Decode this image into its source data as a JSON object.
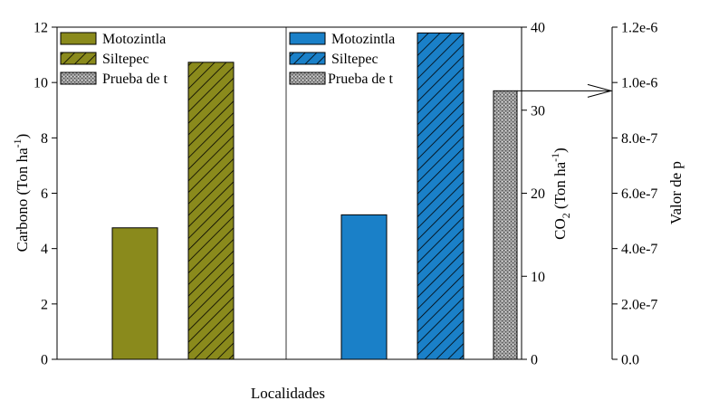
{
  "chart_data": {
    "type": "bar",
    "panels": [
      {
        "name": "Carbono",
        "ylabel_main": "Carbono (Ton ha",
        "ylabel_sup": "-1",
        "ylabel_end": ")",
        "ylim": [
          0,
          12
        ],
        "ticks": [
          "0",
          "2",
          "4",
          "6",
          "8",
          "10",
          "12"
        ],
        "tick_values": [
          0,
          2,
          4,
          6,
          8,
          10,
          12
        ],
        "series": [
          {
            "name": "Motozintla",
            "value": 4.75
          },
          {
            "name": "Siltepec",
            "value": 10.73
          }
        ]
      },
      {
        "name": "CO2",
        "ylabel_main": "CO",
        "ylabel_sub": "2",
        "ylabel_rest": " (Ton ha",
        "ylabel_sup": "-1",
        "ylabel_end": ")",
        "ylim": [
          0,
          40
        ],
        "ticks": [
          "0",
          "10",
          "20",
          "30",
          "40"
        ],
        "tick_values": [
          0,
          10,
          20,
          30,
          40
        ],
        "series": [
          {
            "name": "Motozintla",
            "value": 17.4
          },
          {
            "name": "Siltepec",
            "value": 39.3
          }
        ]
      }
    ],
    "pvalue": {
      "label": "Prueba de t",
      "value": 9.7e-07,
      "ylim": [
        0,
        1.2e-06
      ],
      "ylabel": "Valor de p",
      "ticks": [
        "0.0",
        "2.0e-7",
        "4.0e-7",
        "6.0e-7",
        "8.0e-7",
        "1.0e-6",
        "1.2e-6"
      ],
      "tick_values": [
        0,
        2e-07,
        4e-07,
        6e-07,
        8e-07,
        1e-06,
        1.2e-06
      ]
    },
    "legend": {
      "left": [
        "Motozintla",
        "Siltepec",
        "Prueba de t"
      ],
      "right": [
        "Motozintla",
        "Siltepec",
        "Prueba de t"
      ]
    },
    "xlabel": "Localidades"
  },
  "colors": {
    "olive": "#8a8a1c",
    "blue": "#1a80c8",
    "gray": "#a4a4a4"
  }
}
